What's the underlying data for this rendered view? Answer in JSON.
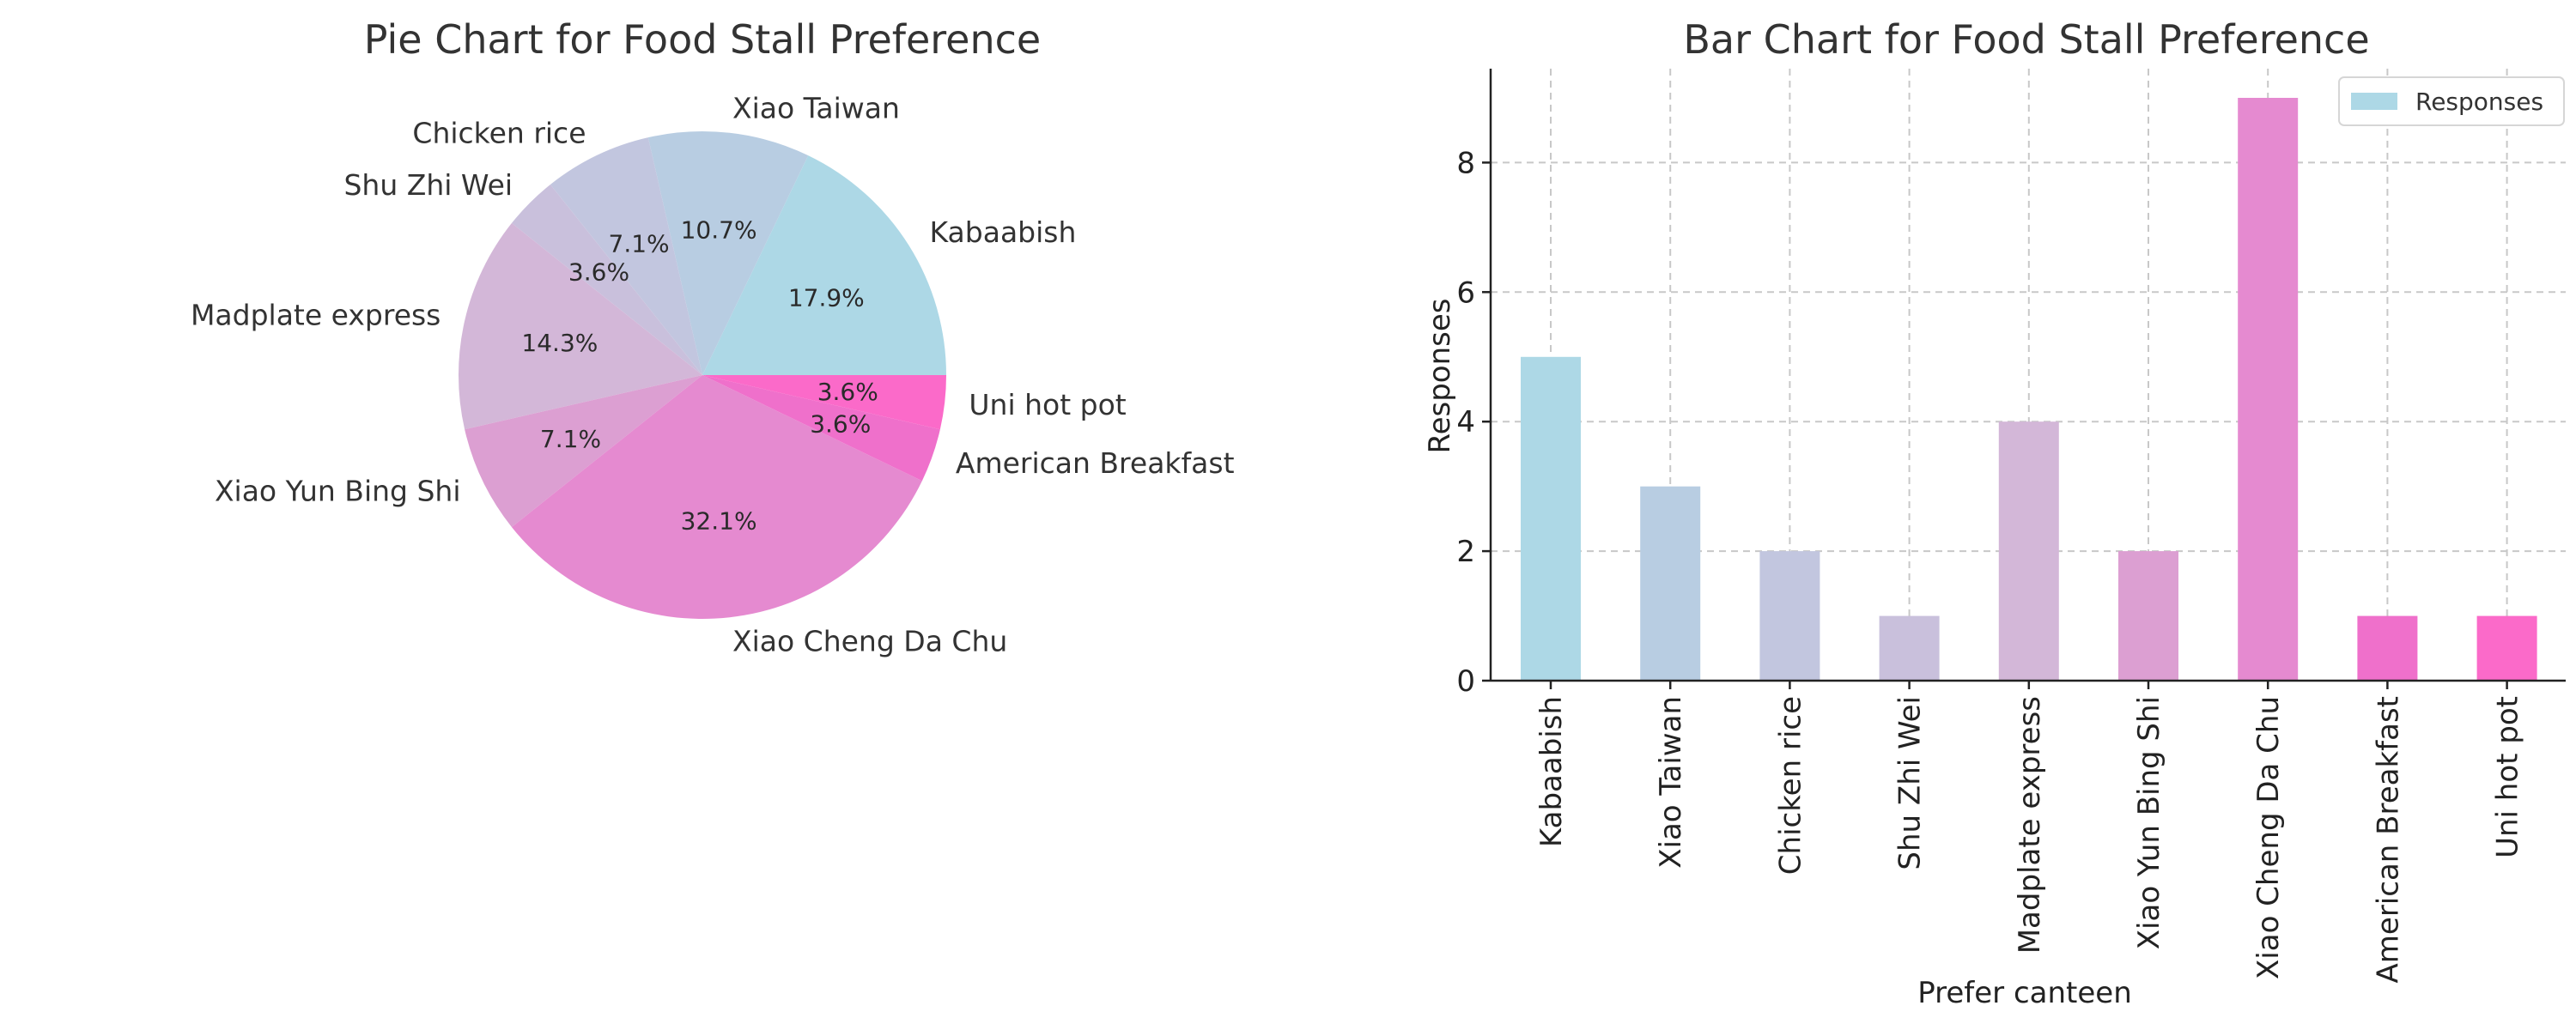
{
  "chart_data": [
    {
      "type": "pie",
      "title": "Pie Chart for Food Stall Preference",
      "categories": [
        "Kabaabish",
        "Xiao Taiwan",
        "Chicken rice",
        "Shu Zhi Wei",
        "Madplate express",
        "Xiao Yun Bing Shi",
        "Xiao Cheng Da Chu",
        "American Breakfast",
        "Uni hot pot"
      ],
      "values": [
        5,
        3,
        2,
        1,
        4,
        2,
        9,
        1,
        1
      ],
      "percent_labels": [
        "17.9%",
        "10.7%",
        "7.1%",
        "3.6%",
        "14.3%",
        "7.1%",
        "32.1%",
        "3.6%",
        "3.6%"
      ],
      "colors": [
        "#add8e6",
        "#b8cde2",
        "#c2c6df",
        "#c9c0dc",
        "#d3b7d8",
        "#dc9fd2",
        "#e58ad0",
        "#ef70cb",
        "#fb6ac9"
      ],
      "start_angle_deg": 0,
      "direction": "counterclockwise"
    },
    {
      "type": "bar",
      "title": "Bar Chart for Food Stall Preference",
      "categories": [
        "Kabaabish",
        "Xiao Taiwan",
        "Chicken rice",
        "Shu Zhi Wei",
        "Madplate express",
        "Xiao Yun Bing Shi",
        "Xiao Cheng Da Chu",
        "American Breakfast",
        "Uni hot pot"
      ],
      "series": [
        {
          "name": "Responses",
          "values": [
            5,
            3,
            2,
            1,
            4,
            2,
            9,
            1,
            1
          ]
        }
      ],
      "colors": [
        "#add8e6",
        "#b8cde2",
        "#c2c6df",
        "#c9c0dc",
        "#d3b7d8",
        "#dc9fd2",
        "#e58ad0",
        "#ef70cb",
        "#fb6ac9"
      ],
      "xlabel": "Prefer canteen",
      "ylabel": "Responses",
      "ylim": [
        0,
        9.45
      ],
      "yticks": [
        0,
        2,
        4,
        6,
        8
      ],
      "grid": true,
      "legend": "top-right"
    }
  ]
}
